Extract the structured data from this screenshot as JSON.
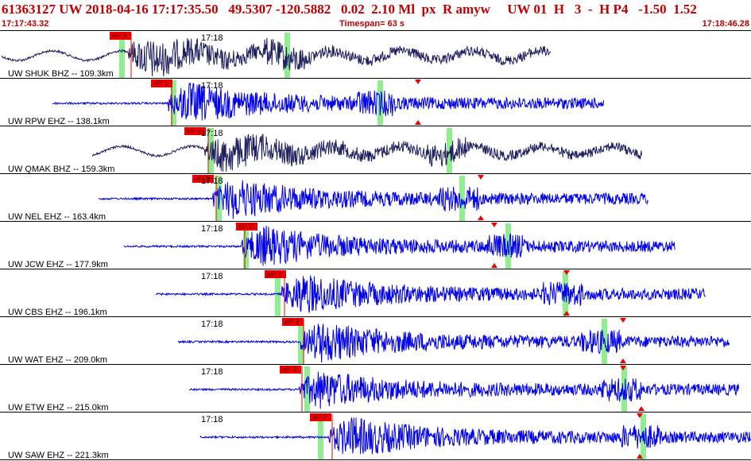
{
  "header": {
    "line1": "61363127 UW 2018-04-16 17:17:35.50   49.5307 -120.5882   0.02  2.10 Ml  px  R amyw     UW 01  H   3  -  H P4   -1.50  1.52",
    "start_time": "17:17:43.32",
    "timespan": "Timespan=  63 s",
    "end_time": "17:18:46.28"
  },
  "colors": {
    "header_text": "#c00000",
    "trace_dark": "#202060",
    "trace_blue": "#0000ee",
    "pick_box": "#ee0000",
    "window_green": "#90ee90",
    "separator": "#000000"
  },
  "traces": [
    {
      "label": "UW SHUK BHZ -- 109.3km",
      "pick": "eP 3",
      "time_label": "17:18",
      "color": "dark"
    },
    {
      "label": "UW RPW EHZ -- 138.1km",
      "pick": "eP 1",
      "time_label": "17:18",
      "color": "blue"
    },
    {
      "label": "UW QMAK BHZ -- 159.3km",
      "pick": "eP 2",
      "time_label": "17:18",
      "color": "dark"
    },
    {
      "label": "UW NEL EHZ -- 163.4km",
      "pick": "eP 2",
      "time_label": "17:18",
      "color": "blue"
    },
    {
      "label": "UW JCW EHZ -- 177.9km",
      "pick": "eP 2",
      "time_label": "17:18",
      "color": "blue"
    },
    {
      "label": "UW CBS EHZ -- 196.1km",
      "pick": "eP 2",
      "time_label": "17:18",
      "color": "blue"
    },
    {
      "label": "UW WAT EHZ -- 209.0km",
      "pick": "eP 2",
      "time_label": "17:18",
      "color": "blue"
    },
    {
      "label": "UW ETW EHZ -- 215.0km",
      "pick": "eP 3",
      "time_label": "17:18",
      "color": "blue"
    },
    {
      "label": "UW SAW EHZ -- 221.3km",
      "pick": "eP 2",
      "time_label": "17:18",
      "color": "blue"
    }
  ]
}
